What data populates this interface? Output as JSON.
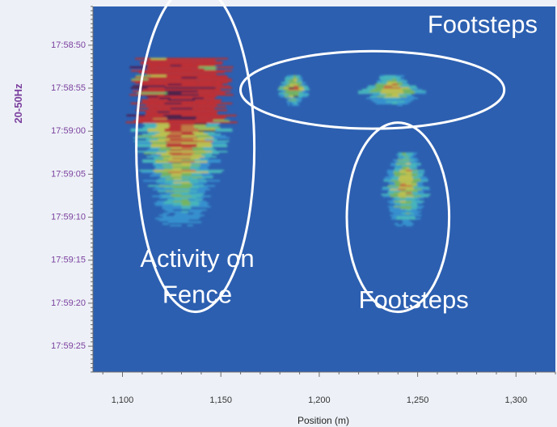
{
  "chart_data": {
    "type": "heatmap",
    "title": "",
    "xlabel": "Position (m)",
    "ylabel": "20-50Hz",
    "x_ticks": [
      "1,100",
      "1,150",
      "1,200",
      "1,250",
      "1,300"
    ],
    "x_tick_values": [
      1100,
      1150,
      1200,
      1250,
      1300
    ],
    "y_ticks": [
      "17:58:50",
      "17:58:55",
      "17:59:00",
      "17:59:05",
      "17:59:10",
      "17:59:15",
      "17:59:20",
      "17:59:25"
    ],
    "y_tick_values": [
      50,
      55,
      60,
      65,
      70,
      75,
      80,
      85
    ],
    "xlim": [
      1085,
      1320
    ],
    "ylim": [
      45.5,
      88
    ],
    "colorscale": [
      "#2c5fb0",
      "#3aa0d8",
      "#4fd0c0",
      "#8bd04a",
      "#e8e030",
      "#f08020",
      "#e82010",
      "#5a0a2a"
    ],
    "regions": [
      {
        "label": "Activity on Fence",
        "x_center": 1130,
        "x_half_width": 24,
        "y_start": 51.5,
        "y_end": 71,
        "peak_intensity": 1.0
      },
      {
        "label": "Footsteps",
        "x_center": 1187,
        "x_half_width": 8,
        "y_start": 53.5,
        "y_end": 57,
        "peak_intensity": 0.9
      },
      {
        "label": "Footsteps",
        "x_center": 1237,
        "x_half_width": 16,
        "y_start": 53.5,
        "y_end": 57,
        "peak_intensity": 0.85
      },
      {
        "label": "Footsteps",
        "x_center": 1244,
        "x_half_width": 12,
        "y_start": 62.5,
        "y_end": 71,
        "peak_intensity": 0.75
      }
    ],
    "annotations": [
      {
        "text": "Footsteps",
        "x": 1283,
        "y": 47.8
      },
      {
        "text": "Activity on",
        "x": 1138,
        "y": 75
      },
      {
        "text": "Fence",
        "x": 1138,
        "y": 79.2
      },
      {
        "text": "Footsteps",
        "x": 1248,
        "y": 79.8
      }
    ]
  }
}
